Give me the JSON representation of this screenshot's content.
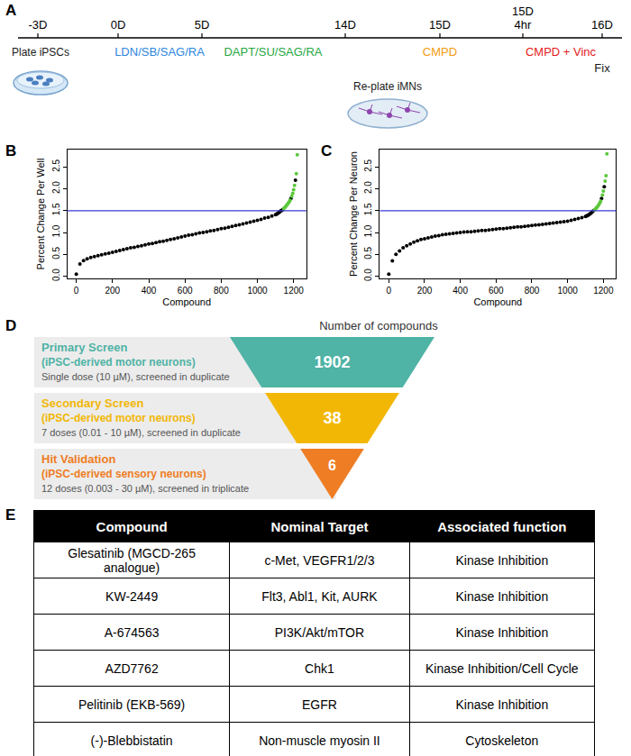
{
  "panel_labels": [
    "A",
    "B",
    "C",
    "D",
    "E"
  ],
  "timeline": {
    "timepoints": [
      [
        "-3D"
      ],
      [
        "0D"
      ],
      [
        "5D"
      ],
      [
        "14D"
      ],
      [
        "15D"
      ],
      [
        "15D",
        "4hr"
      ],
      [
        "16D"
      ]
    ],
    "steps": [
      {
        "text": "Plate iPSCs",
        "color": "#1a1a1a"
      },
      {
        "text": "LDN/SB/SAG/RA",
        "color": "#2e86de"
      },
      {
        "text": "DAPT/SU/SAG/RA",
        "color": "#27a844"
      },
      {
        "text": "Re-plate iMNs",
        "color": "#1a1a1a"
      },
      {
        "text": "CMPD",
        "color": "#f39c12"
      },
      {
        "text": "CMPD + Vinc",
        "color": "#e31a1c"
      },
      {
        "text": "Fix",
        "color": "#1a1a1a"
      }
    ]
  },
  "chart_data": [
    {
      "type": "scatter",
      "x_label": "Compound",
      "y_label": "Percent Change Per Well",
      "xlim": [
        -50,
        1270
      ],
      "ylim": [
        -0.05,
        2.9
      ],
      "xticks": [
        0,
        200,
        400,
        600,
        800,
        1000,
        1200
      ],
      "yticks": [
        {
          "value": 0,
          "label": "0.0"
        },
        0.5,
        {
          "value": 1,
          "label": "1.0"
        },
        1.5,
        {
          "value": 2,
          "label": "2.0"
        },
        2.5
      ],
      "grid": false,
      "marker": "circle",
      "reference_line": {
        "y": 1.5,
        "color": "#3b3bd6"
      },
      "series": [
        {
          "color": "#000000",
          "x": [
            0,
            20,
            40,
            60,
            80,
            100,
            120,
            140,
            160,
            180,
            200,
            220,
            240,
            260,
            280,
            300,
            320,
            340,
            360,
            380,
            400,
            420,
            440,
            460,
            480,
            500,
            520,
            540,
            560,
            580,
            600,
            620,
            640,
            660,
            680,
            700,
            720,
            740,
            760,
            780,
            800,
            820,
            840,
            860,
            880,
            900,
            920,
            940,
            960,
            980,
            1000,
            1020,
            1040,
            1060,
            1080,
            1100,
            1105,
            1110,
            1115,
            1120,
            1125,
            1130,
            1135,
            1140,
            1185,
            1210
          ],
          "values": [
            0.05,
            0.28,
            0.36,
            0.4,
            0.43,
            0.45,
            0.47,
            0.49,
            0.51,
            0.53,
            0.55,
            0.57,
            0.59,
            0.61,
            0.63,
            0.65,
            0.66,
            0.68,
            0.7,
            0.72,
            0.74,
            0.75,
            0.77,
            0.79,
            0.8,
            0.82,
            0.84,
            0.86,
            0.88,
            0.9,
            0.92,
            0.94,
            0.95,
            0.97,
            0.99,
            1.0,
            1.02,
            1.04,
            1.05,
            1.07,
            1.09,
            1.1,
            1.12,
            1.14,
            1.16,
            1.18,
            1.2,
            1.22,
            1.24,
            1.26,
            1.28,
            1.3,
            1.33,
            1.35,
            1.38,
            1.41,
            1.42,
            1.43,
            1.45,
            1.46,
            1.48,
            1.5,
            1.51,
            1.53,
            1.78,
            2.2
          ]
        },
        {
          "color": "#5cc83c",
          "x": [
            1145,
            1150,
            1155,
            1160,
            1165,
            1170,
            1175,
            1180,
            1190,
            1195,
            1200,
            1205,
            1215,
            1220
          ],
          "values": [
            1.55,
            1.57,
            1.59,
            1.62,
            1.64,
            1.67,
            1.7,
            1.74,
            1.83,
            1.9,
            1.98,
            2.08,
            2.35,
            2.78
          ]
        }
      ]
    },
    {
      "type": "scatter",
      "x_label": "Compound",
      "y_label": "Percent Change Per Neuron",
      "xlim": [
        -50,
        1270
      ],
      "ylim": [
        -0.05,
        2.9
      ],
      "xticks": [
        0,
        200,
        400,
        600,
        800,
        1000,
        1200
      ],
      "yticks": [
        {
          "value": 0,
          "label": "0.0"
        },
        0.5,
        {
          "value": 1,
          "label": "1.0"
        },
        1.5,
        {
          "value": 2,
          "label": "2.0"
        },
        2.5
      ],
      "grid": false,
      "marker": "circle",
      "reference_line": {
        "y": 1.5,
        "color": "#3b3bd6"
      },
      "series": [
        {
          "color": "#000000",
          "x": [
            0,
            20,
            40,
            60,
            80,
            100,
            120,
            140,
            160,
            180,
            200,
            220,
            240,
            260,
            280,
            300,
            320,
            340,
            360,
            380,
            400,
            420,
            440,
            460,
            480,
            500,
            520,
            540,
            560,
            580,
            600,
            620,
            640,
            660,
            680,
            700,
            720,
            740,
            760,
            780,
            800,
            820,
            840,
            860,
            880,
            900,
            920,
            940,
            960,
            980,
            1000,
            1020,
            1040,
            1060,
            1080,
            1100,
            1105,
            1110,
            1115,
            1120,
            1125,
            1130,
            1135,
            1140,
            1145,
            1190,
            1205
          ],
          "values": [
            0.05,
            0.35,
            0.5,
            0.58,
            0.65,
            0.7,
            0.74,
            0.78,
            0.81,
            0.84,
            0.86,
            0.88,
            0.9,
            0.92,
            0.93,
            0.95,
            0.96,
            0.97,
            0.98,
            0.99,
            1.0,
            1.01,
            1.02,
            1.02,
            1.03,
            1.04,
            1.05,
            1.05,
            1.06,
            1.07,
            1.08,
            1.09,
            1.09,
            1.1,
            1.11,
            1.12,
            1.13,
            1.13,
            1.14,
            1.15,
            1.16,
            1.17,
            1.18,
            1.19,
            1.2,
            1.21,
            1.22,
            1.23,
            1.24,
            1.25,
            1.26,
            1.28,
            1.3,
            1.32,
            1.34,
            1.37,
            1.38,
            1.39,
            1.4,
            1.41,
            1.43,
            1.44,
            1.46,
            1.48,
            1.5,
            1.78,
            2.05
          ]
        },
        {
          "color": "#5cc83c",
          "x": [
            1150,
            1155,
            1160,
            1165,
            1170,
            1175,
            1180,
            1185,
            1195,
            1200,
            1210,
            1215,
            1220
          ],
          "values": [
            1.52,
            1.54,
            1.56,
            1.58,
            1.61,
            1.64,
            1.68,
            1.72,
            1.86,
            1.95,
            2.18,
            2.3,
            2.8
          ]
        }
      ]
    }
  ],
  "funnel": {
    "header": "Number of compounds",
    "stages": [
      {
        "title": "Primary Screen",
        "subtitle": "(iPSC-derived motor neurons)",
        "detail": "Single dose (10 µM), screened in duplicate",
        "count": 1902,
        "color": "#4fb3a5"
      },
      {
        "title": "Secondary Screen",
        "subtitle": "(iPSC-derived motor neurons)",
        "detail": "7 doses (0.01 - 10 µM), screened in duplicate",
        "count": 38,
        "color": "#f2b705"
      },
      {
        "title": "Hit Validation",
        "subtitle": "(iPSC-derived sensory neurons)",
        "detail": "12 doses (0.003 - 30 µM), screened in triplicate",
        "count": 6,
        "color": "#ee7d24"
      }
    ]
  },
  "table": {
    "header": [
      "Compound",
      "Nominal Target",
      "Associated function"
    ],
    "rows": [
      [
        "Glesatinib (MGCD-265 analogue)",
        "c-Met, VEGFR1/2/3",
        "Kinase Inhibition"
      ],
      [
        "KW-2449",
        "Flt3, Abl1, Kit, AURK",
        "Kinase Inhibition"
      ],
      [
        "A-674563",
        "PI3K/Akt/mTOR",
        "Kinase Inhibition"
      ],
      [
        "AZD7762",
        "Chk1",
        "Kinase Inhibition/Cell Cycle"
      ],
      [
        "Pelitinib (EKB-569)",
        "EGFR",
        "Kinase Inhibition"
      ],
      [
        "(-)-Blebbistatin",
        "Non-muscle myosin II",
        "Cytoskeleton"
      ]
    ]
  }
}
